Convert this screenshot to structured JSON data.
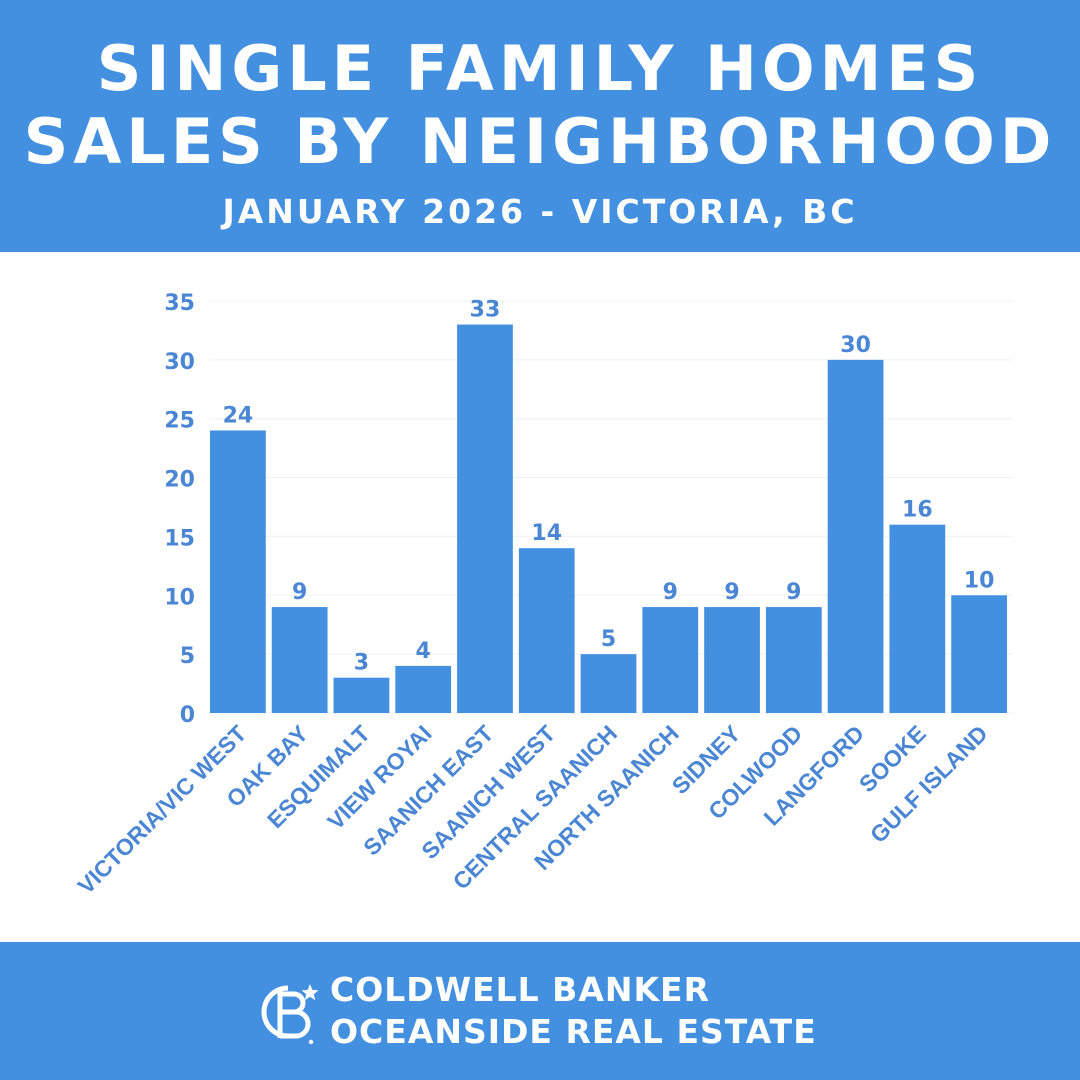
{
  "header": {
    "title_line1": "SINGLE FAMILY HOMES",
    "title_line2": "SALES BY NEIGHBORHOOD",
    "subtitle": "JANUARY 2026 - VICTORIA, BC"
  },
  "chart_data": {
    "type": "bar",
    "title": "SINGLE FAMILY HOMES SALES BY NEIGHBORHOOD",
    "subtitle": "JANUARY 2026 - VICTORIA, BC",
    "categories": [
      "VICTORIA/VIC WEST",
      "OAK BAY",
      "ESQUIMALT",
      "VIEW ROYAI",
      "SAANICH EAST",
      "SAANICH WEST",
      "CENTRAL SAANICH",
      "NORTH SAANICH",
      "SIDNEY",
      "COLWOOD",
      "LANGFORD",
      "SOOKE",
      "GULF ISLAND"
    ],
    "values": [
      24,
      9,
      3,
      4,
      33,
      14,
      5,
      9,
      9,
      9,
      30,
      16,
      10
    ],
    "ylim": [
      0,
      35
    ],
    "yticks": [
      0,
      5,
      10,
      15,
      20,
      25,
      30,
      35
    ],
    "grid": true,
    "data_labels": true,
    "bar_color": "#4490e0",
    "text_color": "#4a86d4"
  },
  "footer": {
    "brand_line1": "COLDWELL BANKER",
    "brand_line2": "OCEANSIDE REAL ESTATE",
    "logo_icon": "coldwell-banker-cb-logo-icon"
  },
  "colors": {
    "header_bg": "#4490e0",
    "footer_bg": "#4490e0",
    "header_text": "#ffffff"
  }
}
